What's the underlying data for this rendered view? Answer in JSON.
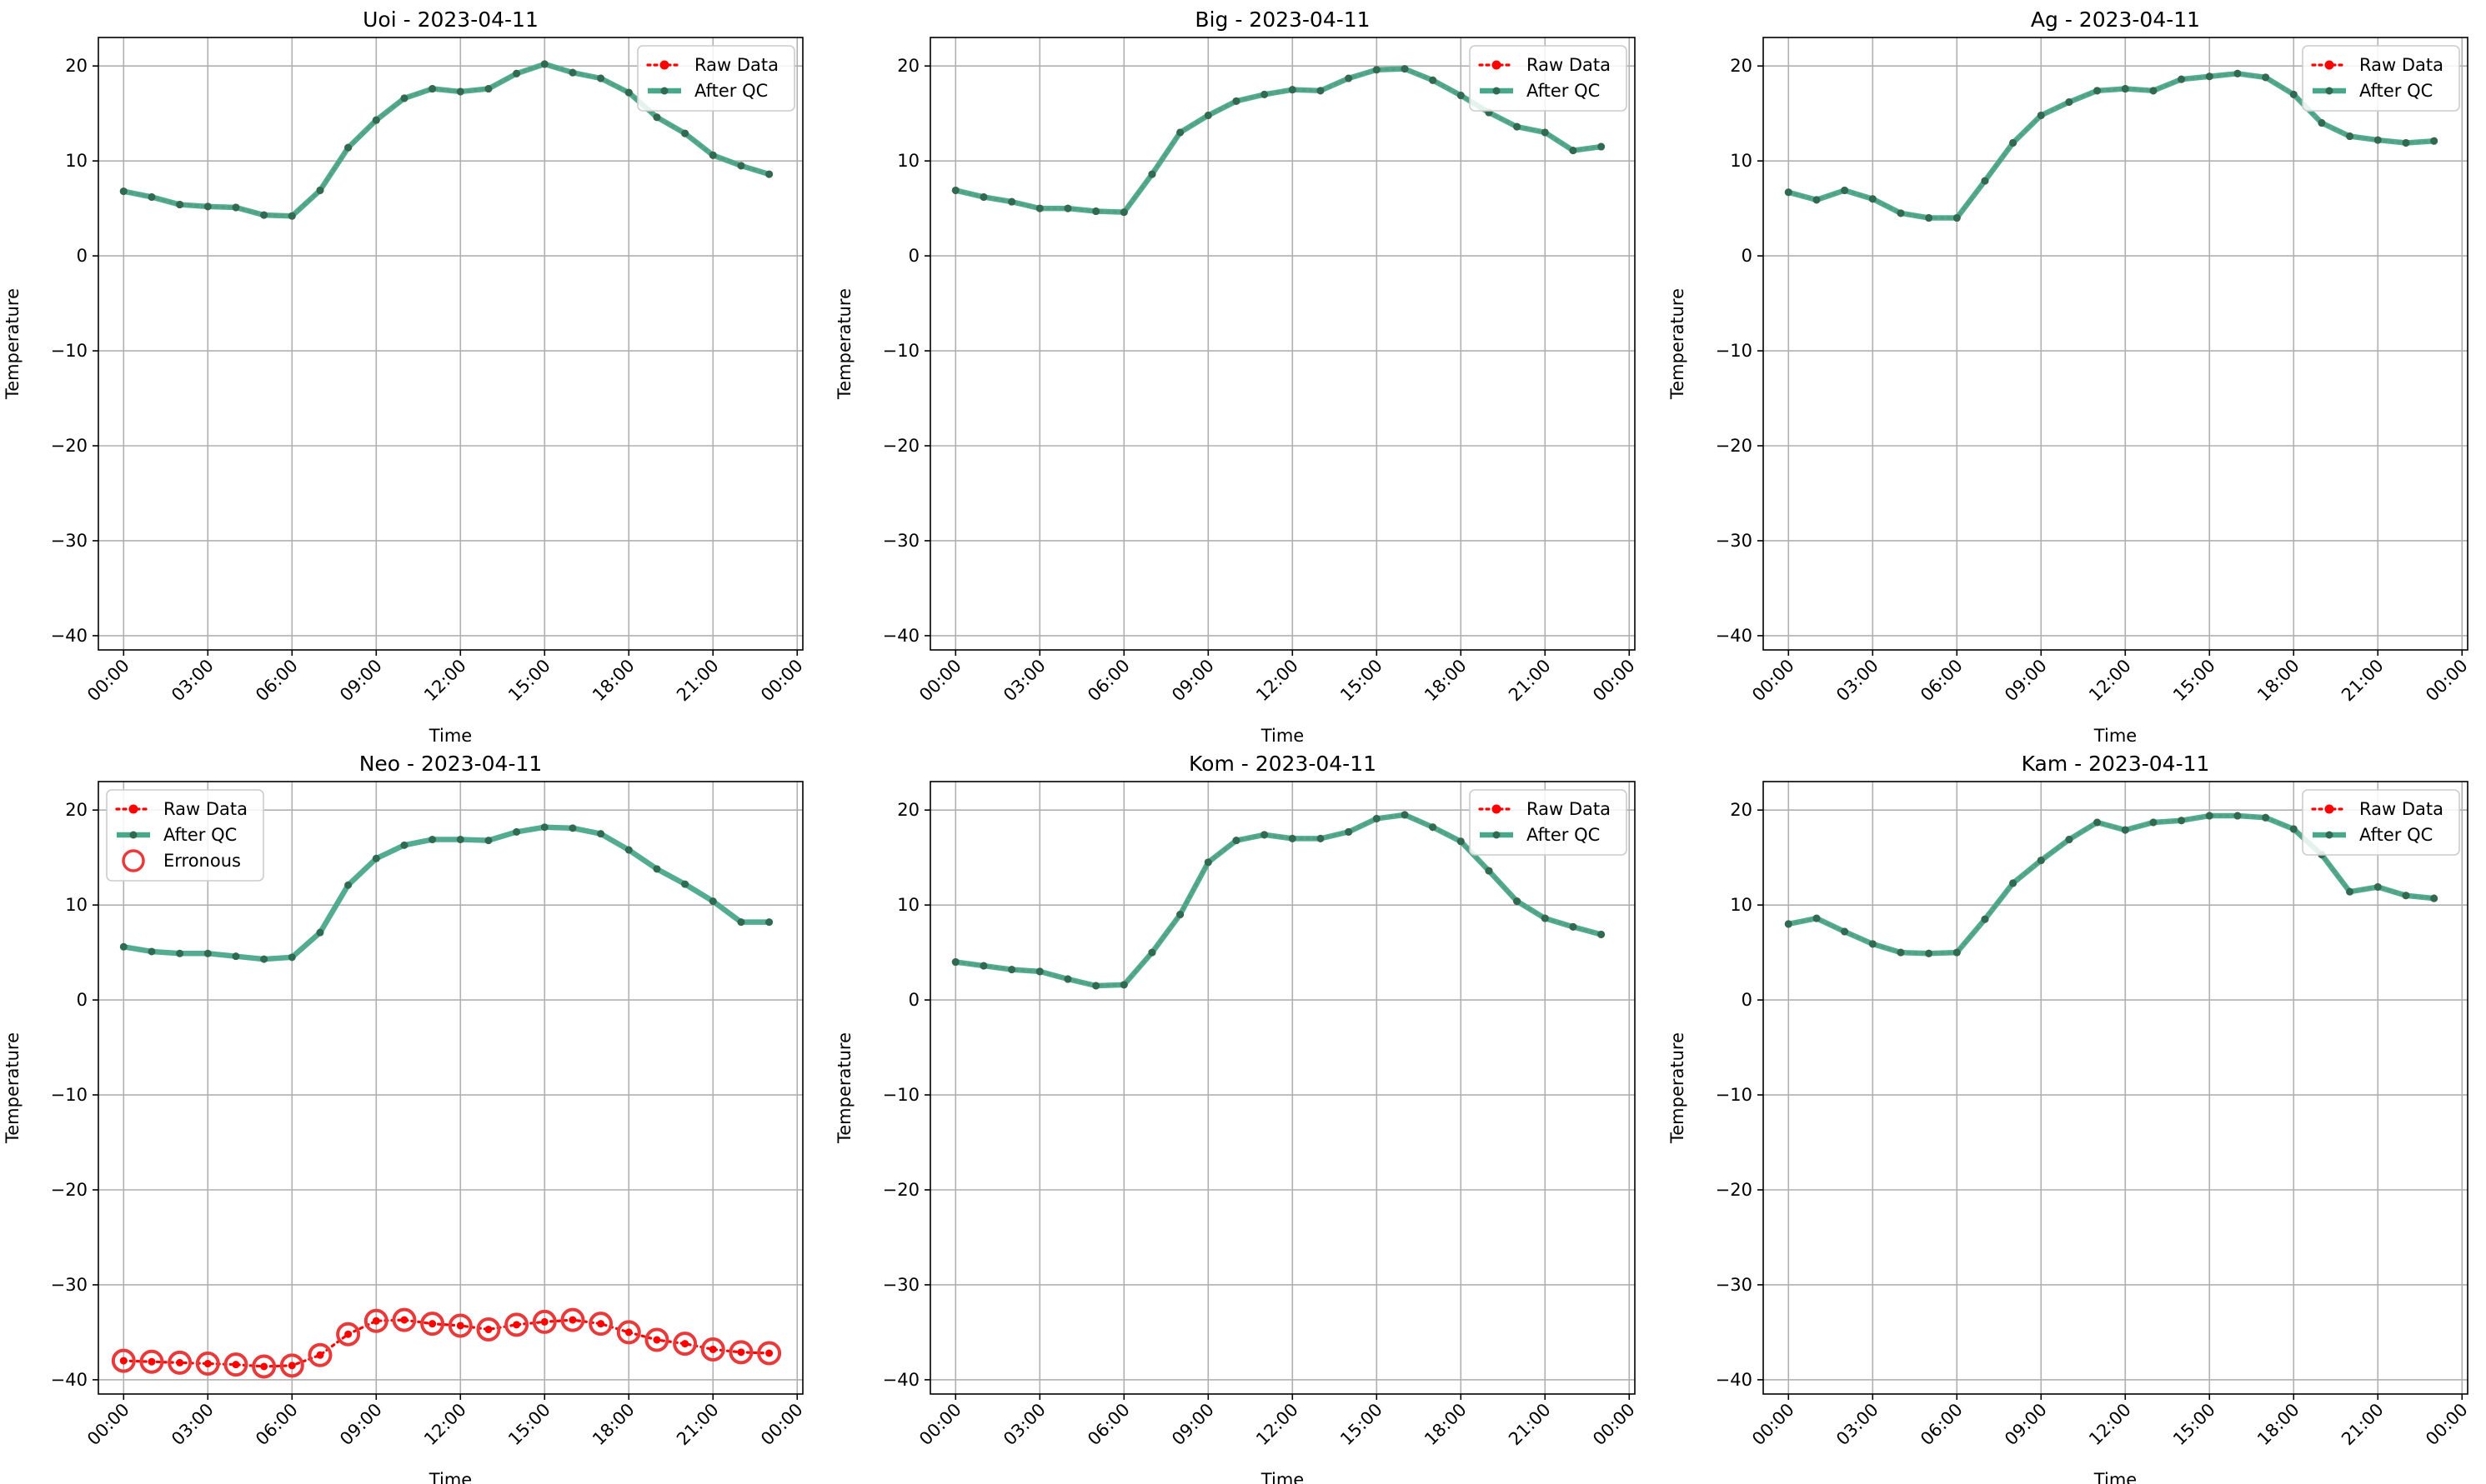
{
  "chart_data": [
    {
      "type": "line",
      "title": "Uoi - 2023-04-11",
      "xlabel": "Time",
      "ylabel": "Temperature",
      "ylim": [
        -41.5,
        23
      ],
      "yticks": [
        20,
        10,
        0,
        -10,
        -20,
        -30,
        -40
      ],
      "yticklabels": [
        "20",
        "10",
        "0",
        "−10",
        "−20",
        "−30",
        "−40"
      ],
      "xlim": [
        -0.9,
        24.2
      ],
      "xticks": [
        0,
        3,
        6,
        9,
        12,
        15,
        18,
        21,
        24
      ],
      "xticklabels": [
        "00:00",
        "03:00",
        "06:00",
        "09:00",
        "12:00",
        "15:00",
        "18:00",
        "21:00",
        "00:00"
      ],
      "grid": true,
      "legend_position": "top-right",
      "legend": [
        "Raw Data",
        "After QC"
      ],
      "x": [
        0,
        1,
        2,
        3,
        4,
        5,
        6,
        7,
        8,
        9,
        10,
        11,
        12,
        13,
        14,
        15,
        16,
        17,
        18,
        19,
        20,
        21,
        22,
        23
      ],
      "series": [
        {
          "name": "Raw Data",
          "values": [
            6.8,
            6.2,
            5.4,
            5.2,
            5.1,
            4.3,
            4.2,
            6.9,
            11.4,
            14.3,
            16.6,
            17.6,
            17.3,
            17.6,
            19.2,
            20.2,
            19.3,
            18.7,
            17.2,
            14.6,
            12.9,
            10.6,
            9.5,
            8.6
          ]
        },
        {
          "name": "After QC",
          "values": [
            6.8,
            6.2,
            5.4,
            5.2,
            5.1,
            4.3,
            4.2,
            6.9,
            11.4,
            14.3,
            16.6,
            17.6,
            17.3,
            17.6,
            19.2,
            20.2,
            19.3,
            18.7,
            17.2,
            14.6,
            12.9,
            10.6,
            9.5,
            8.6
          ]
        }
      ]
    },
    {
      "type": "line",
      "title": "Big - 2023-04-11",
      "xlabel": "Time",
      "ylabel": "Temperature",
      "ylim": [
        -41.5,
        23
      ],
      "yticks": [
        20,
        10,
        0,
        -10,
        -20,
        -30,
        -40
      ],
      "yticklabels": [
        "20",
        "10",
        "0",
        "−10",
        "−20",
        "−30",
        "−40"
      ],
      "xlim": [
        -0.9,
        24.2
      ],
      "xticks": [
        0,
        3,
        6,
        9,
        12,
        15,
        18,
        21,
        24
      ],
      "xticklabels": [
        "00:00",
        "03:00",
        "06:00",
        "09:00",
        "12:00",
        "15:00",
        "18:00",
        "21:00",
        "00:00"
      ],
      "grid": true,
      "legend_position": "top-right",
      "legend": [
        "Raw Data",
        "After QC"
      ],
      "x": [
        0,
        1,
        2,
        3,
        4,
        5,
        6,
        7,
        8,
        9,
        10,
        11,
        12,
        13,
        14,
        15,
        16,
        17,
        18,
        19,
        20,
        21,
        22,
        23
      ],
      "series": [
        {
          "name": "Raw Data",
          "values": [
            6.9,
            6.2,
            5.7,
            5.0,
            5.0,
            4.7,
            4.6,
            8.6,
            13.0,
            14.8,
            16.3,
            17.0,
            17.5,
            17.4,
            18.7,
            19.6,
            19.7,
            18.5,
            16.9,
            15.1,
            13.6,
            13.0,
            11.1,
            11.5
          ]
        },
        {
          "name": "After QC",
          "values": [
            6.9,
            6.2,
            5.7,
            5.0,
            5.0,
            4.7,
            4.6,
            8.6,
            13.0,
            14.8,
            16.3,
            17.0,
            17.5,
            17.4,
            18.7,
            19.6,
            19.7,
            18.5,
            16.9,
            15.1,
            13.6,
            13.0,
            11.1,
            11.5
          ]
        }
      ]
    },
    {
      "type": "line",
      "title": "Ag - 2023-04-11",
      "xlabel": "Time",
      "ylabel": "Temperature",
      "ylim": [
        -41.5,
        23
      ],
      "yticks": [
        20,
        10,
        0,
        -10,
        -20,
        -30,
        -40
      ],
      "yticklabels": [
        "20",
        "10",
        "0",
        "−10",
        "−20",
        "−30",
        "−40"
      ],
      "xlim": [
        -0.9,
        24.2
      ],
      "xticks": [
        0,
        3,
        6,
        9,
        12,
        15,
        18,
        21,
        24
      ],
      "xticklabels": [
        "00:00",
        "03:00",
        "06:00",
        "09:00",
        "12:00",
        "15:00",
        "18:00",
        "21:00",
        "00:00"
      ],
      "grid": true,
      "legend_position": "top-right",
      "legend": [
        "Raw Data",
        "After QC"
      ],
      "x": [
        0,
        1,
        2,
        3,
        4,
        5,
        6,
        7,
        8,
        9,
        10,
        11,
        12,
        13,
        14,
        15,
        16,
        17,
        18,
        19,
        20,
        21,
        22,
        23
      ],
      "series": [
        {
          "name": "Raw Data",
          "values": [
            6.7,
            5.9,
            6.9,
            6.0,
            4.5,
            4.0,
            4.0,
            7.9,
            11.9,
            14.8,
            16.2,
            17.4,
            17.6,
            17.4,
            18.6,
            18.9,
            19.2,
            18.8,
            17.0,
            14.0,
            12.6,
            12.2,
            11.9,
            12.1
          ]
        },
        {
          "name": "After QC",
          "values": [
            6.7,
            5.9,
            6.9,
            6.0,
            4.5,
            4.0,
            4.0,
            7.9,
            11.9,
            14.8,
            16.2,
            17.4,
            17.6,
            17.4,
            18.6,
            18.9,
            19.2,
            18.8,
            17.0,
            14.0,
            12.6,
            12.2,
            11.9,
            12.1
          ]
        }
      ]
    },
    {
      "type": "line",
      "title": "Neo - 2023-04-11",
      "xlabel": "Time",
      "ylabel": "Temperature",
      "ylim": [
        -41.5,
        23
      ],
      "yticks": [
        20,
        10,
        0,
        -10,
        -20,
        -30,
        -40
      ],
      "yticklabels": [
        "20",
        "10",
        "0",
        "−10",
        "−20",
        "−30",
        "−40"
      ],
      "xlim": [
        -0.9,
        24.2
      ],
      "xticks": [
        0,
        3,
        6,
        9,
        12,
        15,
        18,
        21,
        24
      ],
      "xticklabels": [
        "00:00",
        "03:00",
        "06:00",
        "09:00",
        "12:00",
        "15:00",
        "18:00",
        "21:00",
        "00:00"
      ],
      "grid": true,
      "legend_position": "top-left",
      "legend": [
        "Raw Data",
        "After QC",
        "Erronous"
      ],
      "x": [
        0,
        1,
        2,
        3,
        4,
        5,
        6,
        7,
        8,
        9,
        10,
        11,
        12,
        13,
        14,
        15,
        16,
        17,
        18,
        19,
        20,
        21,
        22,
        23
      ],
      "series": [
        {
          "name": "Raw Data",
          "values": [
            -38.0,
            -38.1,
            -38.2,
            -38.3,
            -38.4,
            -38.6,
            -38.5,
            -37.4,
            -35.2,
            -33.8,
            -33.7,
            -34.1,
            -34.3,
            -34.7,
            -34.2,
            -33.9,
            -33.7,
            -34.1,
            -35.0,
            -35.8,
            -36.2,
            -36.8,
            -37.1,
            -37.2
          ]
        },
        {
          "name": "After QC",
          "values": [
            5.6,
            5.1,
            4.9,
            4.9,
            4.6,
            4.3,
            4.5,
            7.1,
            12.1,
            14.9,
            16.3,
            16.9,
            16.9,
            16.8,
            17.7,
            18.2,
            18.1,
            17.5,
            15.8,
            13.8,
            12.2,
            10.4,
            8.2,
            8.2
          ]
        },
        {
          "name": "Erronous",
          "values": [
            -38.0,
            -38.1,
            -38.2,
            -38.3,
            -38.4,
            -38.6,
            -38.5,
            -37.4,
            -35.2,
            -33.8,
            -33.7,
            -34.1,
            -34.3,
            -34.7,
            -34.2,
            -33.9,
            -33.7,
            -34.1,
            -35.0,
            -35.8,
            -36.2,
            -36.8,
            -37.1,
            -37.2
          ]
        }
      ]
    },
    {
      "type": "line",
      "title": "Kom - 2023-04-11",
      "xlabel": "Time",
      "ylabel": "Temperature",
      "ylim": [
        -41.5,
        23
      ],
      "yticks": [
        20,
        10,
        0,
        -10,
        -20,
        -30,
        -40
      ],
      "yticklabels": [
        "20",
        "10",
        "0",
        "−10",
        "−20",
        "−30",
        "−40"
      ],
      "xlim": [
        -0.9,
        24.2
      ],
      "xticks": [
        0,
        3,
        6,
        9,
        12,
        15,
        18,
        21,
        24
      ],
      "xticklabels": [
        "00:00",
        "03:00",
        "06:00",
        "09:00",
        "12:00",
        "15:00",
        "18:00",
        "21:00",
        "00:00"
      ],
      "grid": true,
      "legend_position": "top-right",
      "legend": [
        "Raw Data",
        "After QC"
      ],
      "x": [
        0,
        1,
        2,
        3,
        4,
        5,
        6,
        7,
        8,
        9,
        10,
        11,
        12,
        13,
        14,
        15,
        16,
        17,
        18,
        19,
        20,
        21,
        22,
        23
      ],
      "series": [
        {
          "name": "Raw Data",
          "values": [
            4.0,
            3.6,
            3.2,
            3.0,
            2.2,
            1.5,
            1.6,
            5.0,
            9.0,
            14.5,
            16.8,
            17.4,
            17.0,
            17.0,
            17.7,
            19.1,
            19.5,
            18.2,
            16.7,
            13.6,
            10.4,
            8.6,
            7.7,
            6.9
          ]
        },
        {
          "name": "After QC",
          "values": [
            4.0,
            3.6,
            3.2,
            3.0,
            2.2,
            1.5,
            1.6,
            5.0,
            9.0,
            14.5,
            16.8,
            17.4,
            17.0,
            17.0,
            17.7,
            19.1,
            19.5,
            18.2,
            16.7,
            13.6,
            10.4,
            8.6,
            7.7,
            6.9
          ]
        }
      ]
    },
    {
      "type": "line",
      "title": "Kam - 2023-04-11",
      "xlabel": "Time",
      "ylabel": "Temperature",
      "ylim": [
        -41.5,
        23
      ],
      "yticks": [
        20,
        10,
        0,
        -10,
        -20,
        -30,
        -40
      ],
      "yticklabels": [
        "20",
        "10",
        "0",
        "−10",
        "−20",
        "−30",
        "−40"
      ],
      "xlim": [
        -0.9,
        24.2
      ],
      "xticks": [
        0,
        3,
        6,
        9,
        12,
        15,
        18,
        21,
        24
      ],
      "xticklabels": [
        "00:00",
        "03:00",
        "06:00",
        "09:00",
        "12:00",
        "15:00",
        "18:00",
        "21:00",
        "00:00"
      ],
      "grid": true,
      "legend_position": "top-right",
      "legend": [
        "Raw Data",
        "After QC"
      ],
      "x": [
        0,
        1,
        2,
        3,
        4,
        5,
        6,
        7,
        8,
        9,
        10,
        11,
        12,
        13,
        14,
        15,
        16,
        17,
        18,
        19,
        20,
        21,
        22,
        23
      ],
      "series": [
        {
          "name": "Raw Data",
          "values": [
            8.0,
            8.6,
            7.2,
            5.9,
            5.0,
            4.9,
            5.0,
            8.5,
            12.3,
            14.7,
            16.9,
            18.7,
            17.9,
            18.7,
            18.9,
            19.4,
            19.4,
            19.2,
            18.0,
            15.3,
            11.4,
            11.9,
            11.0,
            10.7
          ]
        },
        {
          "name": "After QC",
          "values": [
            8.0,
            8.6,
            7.2,
            5.9,
            5.0,
            4.9,
            5.0,
            8.5,
            12.3,
            14.7,
            16.9,
            18.7,
            17.9,
            18.7,
            18.9,
            19.4,
            19.4,
            19.2,
            18.0,
            15.3,
            11.4,
            11.9,
            11.0,
            10.7
          ]
        }
      ]
    }
  ],
  "colors": {
    "raw": "#ff0000",
    "qc_line": "#4aa88a",
    "qc_marker": "#2e6b52",
    "erroneous": "#e83a3a",
    "grid": "#b0b0b0"
  }
}
